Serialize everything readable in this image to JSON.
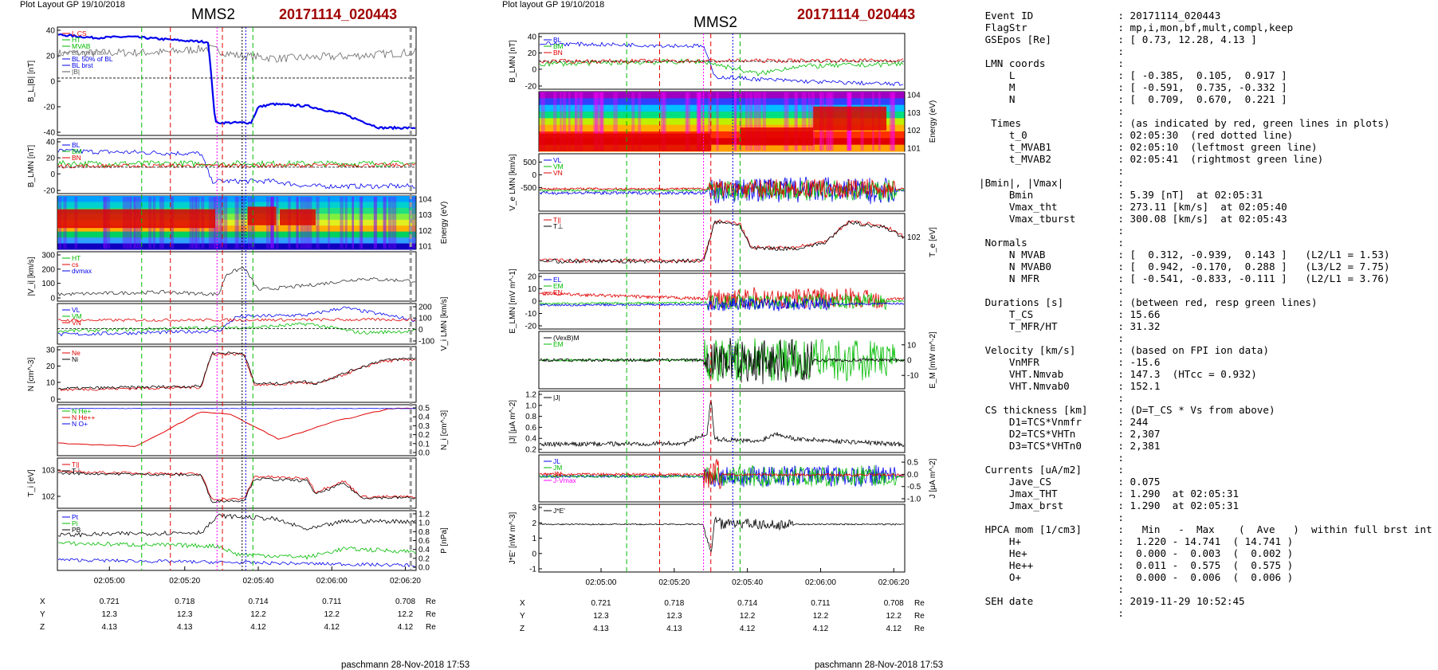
{
  "header": {
    "layout_left": "Plot Layout GP 19/10/2018",
    "layout_mid": "Plot layout GP 19/10/2018",
    "spacecraft": "MMS2",
    "event": "20171114_020443",
    "footer": "paschmann 28-Nov-2018 17:53"
  },
  "colors": {
    "red": "#e00000",
    "green": "#00bb00",
    "blue": "#0000ee",
    "black": "#000000",
    "magenta": "#ff00ff",
    "event": "#a00000",
    "dotcyan": "#33aaff"
  },
  "chart_data": [
    {
      "id": "left-stack",
      "type": "line",
      "title": "MMS2",
      "x_ticks": [
        "02:05:00",
        "02:05:20",
        "02:05:40",
        "02:06:00",
        "02:06:20"
      ],
      "panels": [
        {
          "ylabel": "B_L,|B| [nT]",
          "yticks": [
            "40",
            "20",
            "0",
            "-20",
            "-40"
          ],
          "legend": [
            "L CS",
            "HT",
            "MVAB",
            "BL minmax",
            "BL 50% of BL",
            "BL brst",
            "|B|"
          ]
        },
        {
          "ylabel": "B_LMN [nT]",
          "yticks": [
            "40",
            "20",
            "0",
            "-20"
          ],
          "legend": [
            "BL",
            "BM",
            "BN"
          ]
        },
        {
          "ylabel": "Energy (eV)",
          "yticks": [
            "10^4",
            "10^3",
            "10^2",
            "10^1"
          ],
          "type": "spectrogram"
        },
        {
          "ylabel": "|V_i| [km/s]",
          "yticks": [
            "300",
            "200",
            "100",
            "0"
          ],
          "legend": [
            "HT",
            "cs",
            "dvmax"
          ]
        },
        {
          "ylabel": "V_i LMN [km/s]",
          "yticks": [
            "200",
            "100",
            "0",
            "-100"
          ],
          "legend": [
            "VL",
            "VM",
            "VN"
          ]
        },
        {
          "ylabel": "N [cm^-3]",
          "yticks": [
            "30",
            "20",
            "10",
            "0"
          ],
          "legend": [
            "Ne",
            "Ni"
          ]
        },
        {
          "ylabel": "N_i [cm^-3]",
          "yticks": [
            "0.5",
            "0.4",
            "0.3",
            "0.2",
            "0.1",
            "0.0"
          ],
          "legend": [
            "N He+",
            "N He++",
            "N O+"
          ]
        },
        {
          "ylabel": "T_i [eV]",
          "yticks": [
            "10^3",
            "10^2"
          ],
          "legend": [
            "T||",
            "T⊥"
          ]
        },
        {
          "ylabel": "P [nPa]",
          "yticks": [
            "1.2",
            "1.0",
            "0.8",
            "0.6",
            "0.4",
            "0.2",
            "0.0"
          ],
          "legend": [
            "Pt",
            "Pi",
            "PB"
          ]
        }
      ],
      "orbit": {
        "rows": [
          {
            "label": "X",
            "values": [
              "0.721",
              "0.718",
              "0.714",
              "0.711",
              "0.708"
            ],
            "unit": "Re"
          },
          {
            "label": "Y",
            "values": [
              "12.3",
              "12.3",
              "12.2",
              "12.2",
              "12.2"
            ],
            "unit": "Re"
          },
          {
            "label": "Z",
            "values": [
              "4.13",
              "4.13",
              "4.12",
              "4.12",
              "4.12"
            ],
            "unit": "Re"
          }
        ]
      }
    },
    {
      "id": "mid-stack",
      "type": "line",
      "title": "MMS2",
      "x_ticks": [
        "02:05:00",
        "02:05:20",
        "02:05:40",
        "02:06:00",
        "02:06:20"
      ],
      "panels": [
        {
          "ylabel": "B_LMN [nT]",
          "yticks": [
            "40",
            "20",
            "0",
            "-20"
          ],
          "legend": [
            "BL",
            "BM",
            "BN"
          ]
        },
        {
          "ylabel": "Energy (eV)",
          "yticks": [
            "10^4",
            "10^3",
            "10^2",
            "10^1"
          ],
          "type": "spectrogram"
        },
        {
          "ylabel": "V_e LMN [km/s]",
          "yticks": [
            "500",
            "0",
            "-500"
          ],
          "legend": [
            "VL",
            "VM",
            "VN"
          ]
        },
        {
          "ylabel": "T_e [eV]",
          "yticks": [
            "10^2"
          ],
          "legend": [
            "T||",
            "T⊥"
          ]
        },
        {
          "ylabel": "E_LMN [mV m^-1]",
          "yticks": [
            "20",
            "10",
            "0",
            "-10",
            "-20"
          ],
          "legend": [
            "EL",
            "EM",
            "EN"
          ]
        },
        {
          "ylabel": "E_M [mW m^-2]",
          "yticks": [
            "10",
            "0",
            "-10"
          ],
          "legend": [
            "(VexB)M",
            "EM"
          ]
        },
        {
          "ylabel": "|J| [μA m^-2]",
          "yticks": [
            "1.2",
            "1.0",
            "0.8",
            "0.6",
            "0.4",
            "0.2"
          ],
          "legend": [
            "|J|"
          ]
        },
        {
          "ylabel": "J [μA m^-2]",
          "yticks": [
            "0.5",
            "0.0",
            "-0.5",
            "-1.0"
          ],
          "legend": [
            "JL",
            "JM",
            "JN",
            "J-Vmax"
          ]
        },
        {
          "ylabel": "J*E' [nW m^-3]",
          "yticks": [
            "3",
            "2",
            "1",
            "0",
            "-1"
          ],
          "legend": [
            "J*E'"
          ]
        }
      ],
      "orbit": {
        "rows": [
          {
            "label": "X",
            "values": [
              "0.721",
              "0.718",
              "0.714",
              "0.711",
              "0.708"
            ],
            "unit": "Re"
          },
          {
            "label": "Y",
            "values": [
              "12.3",
              "12.3",
              "12.2",
              "12.2",
              "12.2"
            ],
            "unit": "Re"
          },
          {
            "label": "Z",
            "values": [
              "4.13",
              "4.13",
              "4.12",
              "4.12",
              "4.12"
            ],
            "unit": "Re"
          }
        ]
      }
    }
  ],
  "params": {
    "lines": [
      " Event ID              : 20171114_020443",
      " FlagStr               : mp,i,mon,bf,mult,compl,keep",
      " GSEpos [Re]           : [ 0.73, 12.28, 4.13 ]",
      "                       :",
      " LMN coords            :",
      "     L                 : [ -0.385,  0.105,  0.917 ]",
      "     M                 : [ -0.591,  0.735, -0.332 ]",
      "     N                 : [  0.709,  0.670,  0.221 ]",
      "                       :",
      "  Times                : (as indicated by red, green lines in plots)",
      "     t_0               : 02:05:30  (red dotted line)",
      "     t_MVAB1           : 02:05:10  (leftmost green line)",
      "     t_MVAB2           : 02:05:41  (rightmost green line)",
      "                       :",
      "|Bmin|, |Vmax|         :",
      "     Bmin              : 5.39 [nT]  at 02:05:31",
      "     Vmax_tht          : 273.11 [km/s]  at 02:05:40",
      "     Vmax_tburst       : 300.08 [km/s]  at 02:05:43",
      "                       :",
      " Normals               :",
      "     N MVAB            : [  0.312, -0.939,  0.143 ]   (L2/L1 = 1.53)",
      "     N MVAB0           : [  0.942, -0.170,  0.288 ]   (L3/L2 = 7.75)",
      "     N MFR             : [ -0.541, -0.833, -0.111 ]   (L2/L1 = 3.76)",
      "                       :",
      " Durations [s]         : (between red, resp green lines)",
      "     T_CS              : 15.66",
      "     T_MFR/HT          : 31.32",
      "                       :",
      " Velocity [km/s]       : (based on FPI ion data)",
      "     VnMFR             : -15.6",
      "     VHT.Nmvab         : 147.3  (HTcc = 0.932)",
      "     VHT.Nmvab0        : 152.1",
      "                       :",
      " CS thickness [km]     : (D=T_CS * Vs from above)",
      "     D1=TCS*Vnmfr      : 244",
      "     D2=TCS*VHTn       : 2,307",
      "     D3=TCS*VHTn0      : 2,381",
      "                       :",
      " Currents [uA/m2]      :",
      "     Jave_CS           : 0.075",
      "     Jmax_THT          : 1.290  at 02:05:31",
      "     Jmax_brst         : 1.290  at 02:05:31",
      "                       :",
      " HPCA mom [1/cm3]      :   Min   -  Max    (  Ave   )  within full brst int",
      "     H+                :  1.220 - 14.741  ( 14.741 )",
      "     He+               :  0.000 -  0.003  (  0.002 )",
      "     He++              :  0.011 -  0.575  (  0.575 )",
      "     O+                :  0.000 -  0.006  (  0.006 )",
      "                       :",
      " SEH date              : 2019-11-29 10:52:45",
      "                       :"
    ]
  }
}
